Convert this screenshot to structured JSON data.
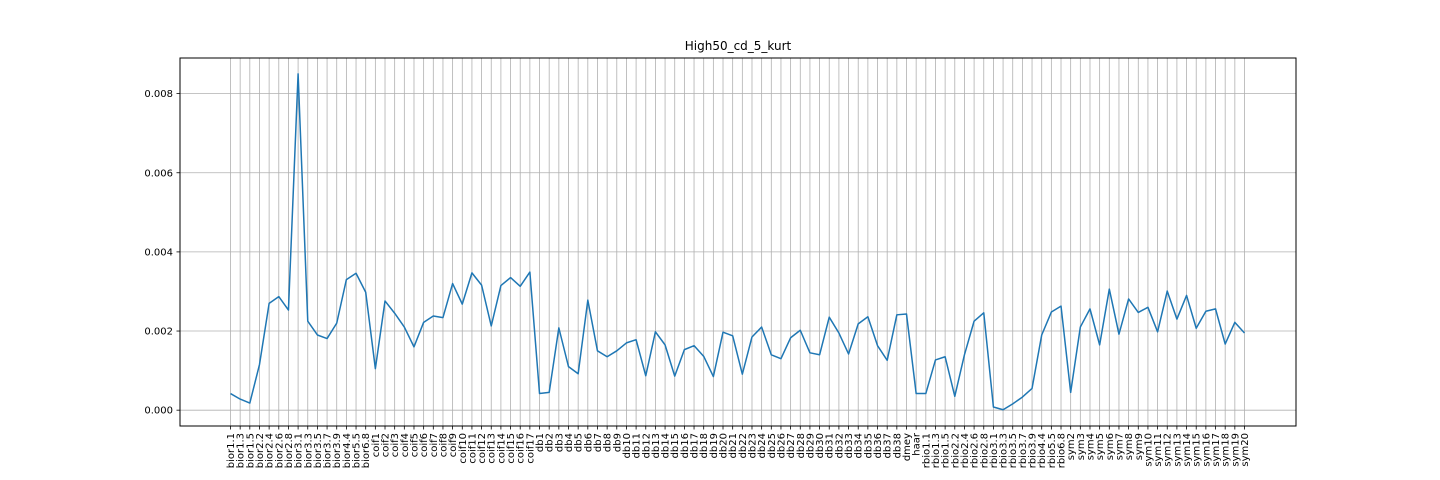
{
  "chart_data": {
    "type": "line",
    "title": "High50_cd_5_kurt",
    "xlabel": "",
    "ylabel": "",
    "ylim": [
      -0.0004,
      0.0089
    ],
    "yticks": [
      0.0,
      0.002,
      0.004,
      0.006,
      0.008
    ],
    "ytick_labels": [
      "0.000",
      "0.002",
      "0.004",
      "0.006",
      "0.008"
    ],
    "grid": true,
    "line_color": "#1f77b4",
    "grid_color": "#b0b0b0",
    "categories": [
      "bior1.1",
      "bior1.3",
      "bior1.5",
      "bior2.2",
      "bior2.4",
      "bior2.6",
      "bior2.8",
      "bior3.1",
      "bior3.3",
      "bior3.5",
      "bior3.7",
      "bior3.9",
      "bior4.4",
      "bior5.5",
      "bior6.8",
      "coif1",
      "coif2",
      "coif3",
      "coif4",
      "coif5",
      "coif6",
      "coif7",
      "coif8",
      "coif9",
      "coif10",
      "coif11",
      "coif12",
      "coif13",
      "coif14",
      "coif15",
      "coif16",
      "coif17",
      "db1",
      "db2",
      "db3",
      "db4",
      "db5",
      "db6",
      "db7",
      "db8",
      "db9",
      "db10",
      "db11",
      "db12",
      "db13",
      "db14",
      "db15",
      "db16",
      "db17",
      "db18",
      "db19",
      "db20",
      "db21",
      "db22",
      "db23",
      "db24",
      "db25",
      "db26",
      "db27",
      "db28",
      "db29",
      "db30",
      "db31",
      "db32",
      "db33",
      "db34",
      "db35",
      "db36",
      "db37",
      "db38",
      "dmey",
      "haar",
      "rbio1.1",
      "rbio1.3",
      "rbio1.5",
      "rbio2.2",
      "rbio2.4",
      "rbio2.6",
      "rbio2.8",
      "rbio3.1",
      "rbio3.3",
      "rbio3.5",
      "rbio3.7",
      "rbio3.9",
      "rbio4.4",
      "rbio5.5",
      "rbio6.8",
      "sym2",
      "sym3",
      "sym4",
      "sym5",
      "sym6",
      "sym7",
      "sym8",
      "sym9",
      "sym10",
      "sym11",
      "sym12",
      "sym13",
      "sym14",
      "sym15",
      "sym16",
      "sym17",
      "sym18",
      "sym19",
      "sym20"
    ],
    "values": [
      0.00042,
      0.00028,
      0.00018,
      0.00115,
      0.0027,
      0.00287,
      0.00253,
      0.0085,
      0.00225,
      0.0019,
      0.00181,
      0.0022,
      0.0033,
      0.00346,
      0.00298,
      0.00105,
      0.00276,
      0.00245,
      0.0021,
      0.0016,
      0.00222,
      0.00238,
      0.00234,
      0.0032,
      0.00268,
      0.00347,
      0.00316,
      0.00213,
      0.00315,
      0.00335,
      0.00313,
      0.00349,
      0.00042,
      0.00045,
      0.00208,
      0.0011,
      0.00092,
      0.00278,
      0.0015,
      0.00135,
      0.0015,
      0.0017,
      0.00178,
      0.00087,
      0.00198,
      0.00165,
      0.00086,
      0.00153,
      0.00163,
      0.00136,
      0.00085,
      0.00197,
      0.00188,
      0.00091,
      0.00185,
      0.0021,
      0.0014,
      0.0013,
      0.00183,
      0.00202,
      0.00145,
      0.0014,
      0.00235,
      0.00195,
      0.00142,
      0.00218,
      0.00236,
      0.00163,
      0.00126,
      0.00241,
      0.00243,
      0.00042,
      0.00042,
      0.00127,
      0.00135,
      0.00035,
      0.0014,
      0.00225,
      0.00246,
      8e-05,
      1e-05,
      0.00016,
      0.00033,
      0.00055,
      0.0019,
      0.00248,
      0.00263,
      0.00045,
      0.0021,
      0.00256,
      0.00165,
      0.00306,
      0.00192,
      0.00281,
      0.00247,
      0.0026,
      0.00198,
      0.00301,
      0.0023,
      0.0029,
      0.00207,
      0.0025,
      0.00256,
      0.00167,
      0.00222,
      0.00195
    ]
  }
}
